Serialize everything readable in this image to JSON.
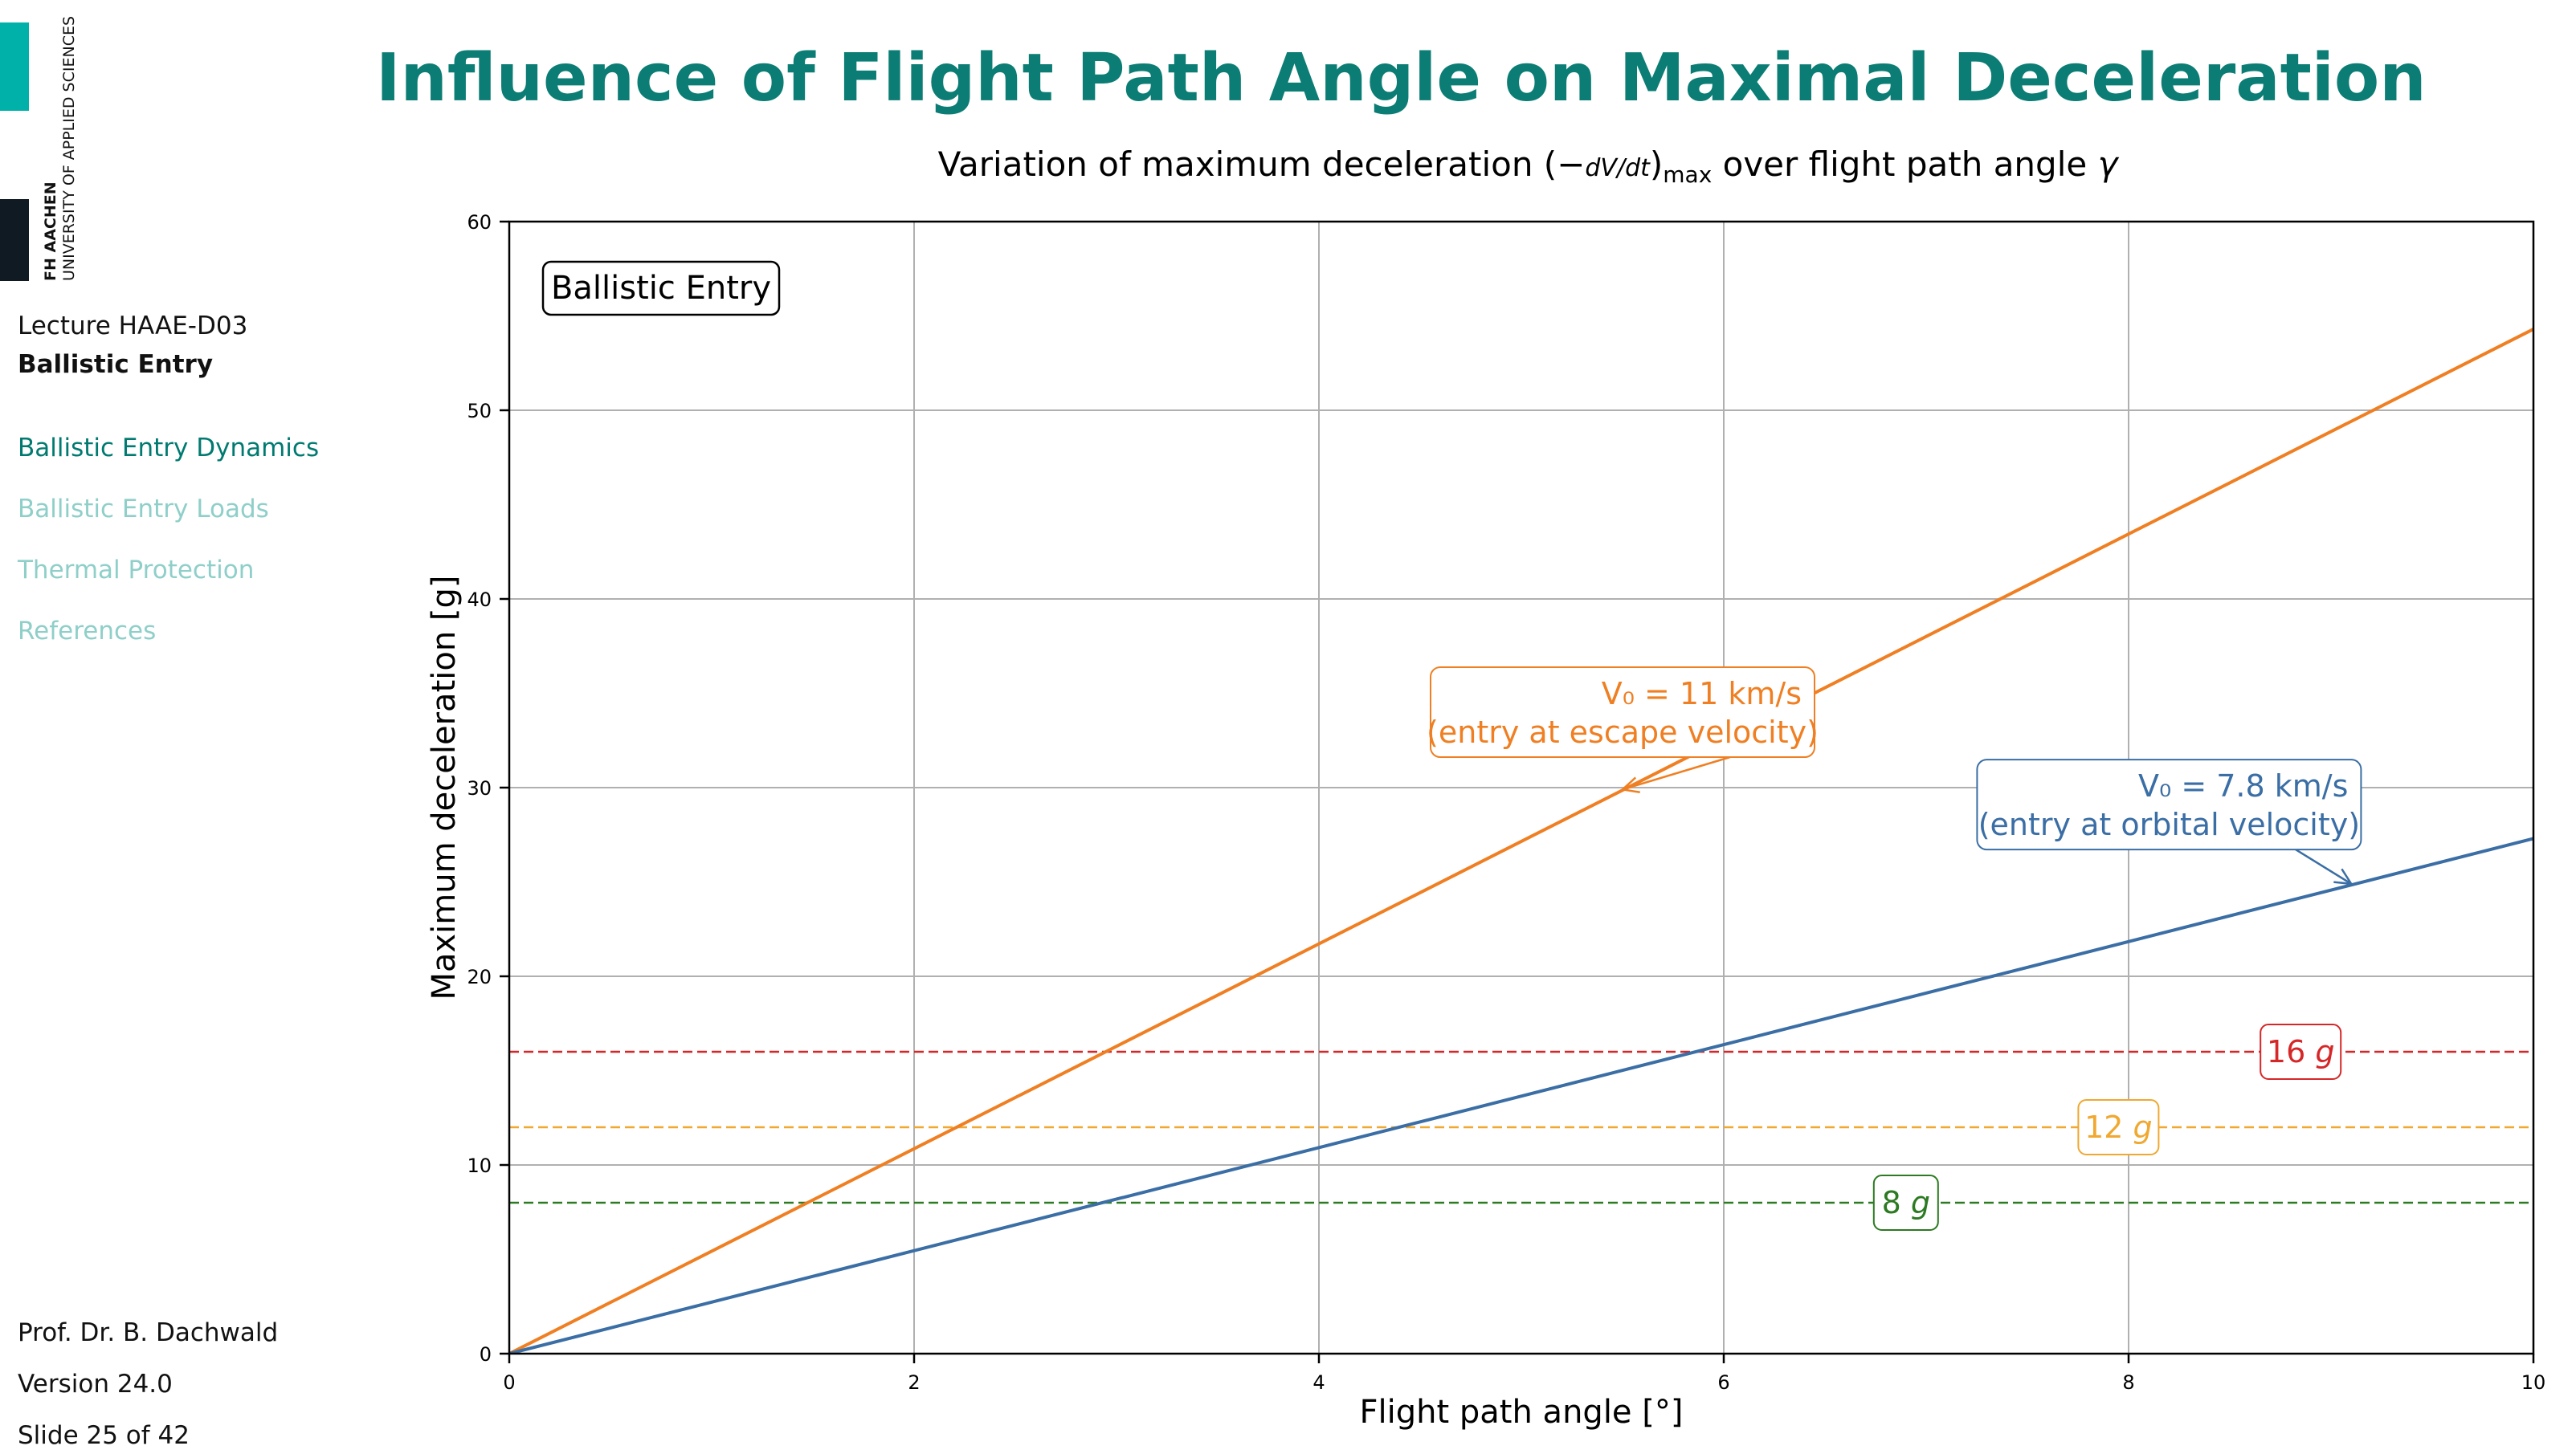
{
  "slide": {
    "title": "Influence of Flight Path Angle on Maximal Deceleration"
  },
  "logo": {
    "line1": "FH AACHEN",
    "line2": "UNIVERSITY OF APPLIED SCIENCES",
    "colors": {
      "teal": "#00b1a9",
      "dark": "#0f1a22"
    }
  },
  "sidebar": {
    "lecture": "Lecture HAAE-D03",
    "subtitle": "Ballistic Entry",
    "nav": [
      {
        "label": "Ballistic Entry Dynamics",
        "active": true
      },
      {
        "label": "Ballistic Entry Loads",
        "active": false
      },
      {
        "label": "Thermal Protection",
        "active": false
      },
      {
        "label": "References",
        "active": false
      }
    ],
    "author": "Prof. Dr. B. Dachwald",
    "version": "Version 24.0",
    "slide_counter": "Slide 25 of 42"
  },
  "chart_data": {
    "type": "line",
    "title_prefix": "Variation of maximum deceleration (",
    "title_deriv": "dV/dt",
    "title_suffix_sub": "max",
    "title_suffix": " over flight path angle ",
    "title_symbol": "γ",
    "xlabel": "Flight path angle [°]",
    "ylabel": "Maximum deceleration [g]",
    "xlim": [
      0,
      10
    ],
    "ylim": [
      0,
      60
    ],
    "xticks": [
      0,
      2,
      4,
      6,
      8,
      10
    ],
    "yticks": [
      0,
      10,
      20,
      30,
      40,
      50,
      60
    ],
    "grid": true,
    "box_label": "Ballistic Entry",
    "series": [
      {
        "name": "V0 = 11 km/s (entry at escape velocity)",
        "color": "#ef7f22",
        "x": [
          0,
          10
        ],
        "y": [
          0,
          54.3
        ],
        "annotation": {
          "line1": "V₀ = 11 km/s",
          "line2": "(entry at escape velocity)",
          "text_anchor_x": 5.5,
          "text_anchor_y": 34.0,
          "point_x": 5.5,
          "point_y": 29.9
        }
      },
      {
        "name": "V0 = 7.8 km/s (entry at orbital velocity)",
        "color": "#3a6ea5",
        "x": [
          0,
          10
        ],
        "y": [
          0,
          27.3
        ],
        "annotation": {
          "line1": "V₀ = 7.8 km/s",
          "line2": "(entry at orbital velocity)",
          "text_anchor_x": 8.2,
          "text_anchor_y": 29.1,
          "point_x": 9.1,
          "point_y": 24.9
        }
      }
    ],
    "reference_lines": [
      {
        "label": "16 g",
        "y": 16,
        "color": "#d62728",
        "label_x": 8.85
      },
      {
        "label": "12 g",
        "y": 12,
        "color": "#f0a830",
        "label_x": 7.95
      },
      {
        "label": "8 g",
        "y": 8,
        "color": "#2c7a22",
        "label_x": 6.9
      }
    ]
  }
}
